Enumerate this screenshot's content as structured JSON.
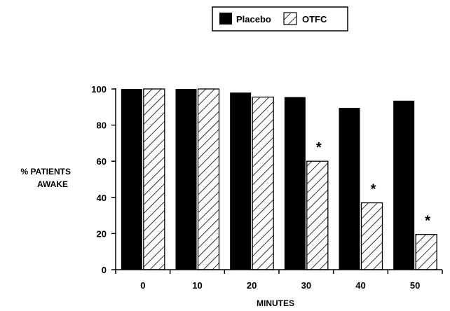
{
  "chart_data": {
    "type": "bar",
    "categories": [
      "0",
      "10",
      "20",
      "30",
      "40",
      "50"
    ],
    "series": [
      {
        "name": "Placebo",
        "values": [
          100,
          100,
          98,
          95.5,
          89.5,
          93.5
        ],
        "fill": "solid",
        "color": "#000000"
      },
      {
        "name": "OTFC",
        "values": [
          100,
          100,
          95.5,
          60,
          37,
          19.5
        ],
        "fill": "hatched",
        "color": "#000000"
      }
    ],
    "annotations": [
      {
        "category": "30",
        "series": "OTFC",
        "text": "*"
      },
      {
        "category": "40",
        "series": "OTFC",
        "text": "*"
      },
      {
        "category": "50",
        "series": "OTFC",
        "text": "*"
      }
    ],
    "xlabel": "MINUTES",
    "ylabel": [
      "% PATIENTS",
      "AWAKE"
    ],
    "ylim": [
      0,
      100
    ],
    "yticks": [
      "0",
      "20",
      "40",
      "60",
      "80",
      "100"
    ],
    "legend": {
      "position": "top-right",
      "boxed": true
    },
    "grid": false
  }
}
